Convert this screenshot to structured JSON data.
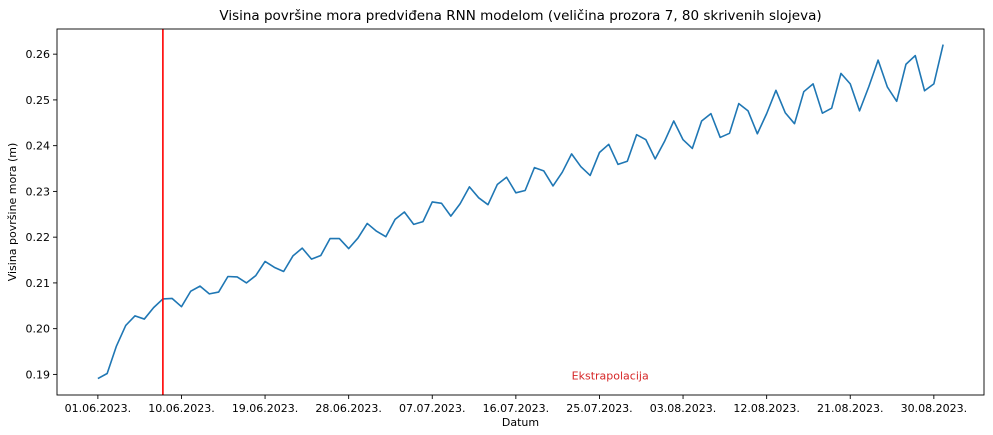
{
  "chart_data": {
    "type": "line",
    "title": "Visina površine mora predviđena RNN modelom (veličina prozora 7, 80 skrivenih slojeva)",
    "xlabel": "Datum",
    "ylabel": "Visina površine mora (m)",
    "ylim": [
      0.1855,
      0.2655
    ],
    "y_ticks": [
      0.19,
      0.2,
      0.21,
      0.22,
      0.23,
      0.24,
      0.25,
      0.26
    ],
    "y_tick_labels": [
      "0.19",
      "0.20",
      "0.21",
      "0.22",
      "0.23",
      "0.24",
      "0.25",
      "0.26"
    ],
    "x_tick_labels": [
      "01.06.2023.",
      "10.06.2023.",
      "19.06.2023.",
      "28.06.2023.",
      "07.07.2023.",
      "16.07.2023.",
      "25.07.2023.",
      "03.08.2023.",
      "12.08.2023.",
      "21.08.2023.",
      "30.08.2023."
    ],
    "x_tick_days": [
      0,
      9,
      18,
      27,
      36,
      45,
      54,
      63,
      72,
      81,
      90
    ],
    "x_start_date": "2023-06-01",
    "xlim_days": [
      -4.4,
      95.4
    ],
    "grid": false,
    "series": [
      {
        "color": "#1f77b4",
        "x_days": [
          0,
          1,
          2,
          3,
          4,
          5,
          6,
          7,
          8,
          9,
          10,
          11,
          12,
          13,
          14,
          15,
          16,
          17,
          18,
          19,
          20,
          21,
          22,
          23,
          24,
          25,
          26,
          27,
          28,
          29,
          30,
          31,
          32,
          33,
          34,
          35,
          36,
          37,
          38,
          39,
          40,
          41,
          42,
          43,
          44,
          45,
          46,
          47,
          48,
          49,
          50,
          51,
          52,
          53,
          54,
          55,
          56,
          57,
          58,
          59,
          60,
          61,
          62,
          63,
          64,
          65,
          66,
          67,
          68,
          69,
          70,
          71,
          72,
          73,
          74,
          75,
          76,
          77,
          78,
          79,
          80,
          81,
          82,
          83,
          84,
          85,
          86,
          87,
          88,
          89,
          90,
          91
        ],
        "values": [
          0.1891,
          0.1902,
          0.1962,
          0.2007,
          0.2028,
          0.2021,
          0.2046,
          0.2065,
          0.2066,
          0.2048,
          0.2082,
          0.2093,
          0.2076,
          0.208,
          0.2114,
          0.2113,
          0.21,
          0.2116,
          0.2147,
          0.2134,
          0.2125,
          0.2159,
          0.2176,
          0.2152,
          0.216,
          0.2197,
          0.2197,
          0.2175,
          0.2198,
          0.223,
          0.2213,
          0.2201,
          0.2239,
          0.2255,
          0.2228,
          0.2234,
          0.2277,
          0.2274,
          0.2246,
          0.2273,
          0.231,
          0.2286,
          0.2271,
          0.2315,
          0.2331,
          0.2297,
          0.2302,
          0.2352,
          0.2345,
          0.2312,
          0.2342,
          0.2382,
          0.2354,
          0.2335,
          0.2385,
          0.2403,
          0.2359,
          0.2366,
          0.2424,
          0.2413,
          0.2371,
          0.2409,
          0.2454,
          0.2413,
          0.2394,
          0.2454,
          0.247,
          0.2418,
          0.2427,
          0.2492,
          0.2476,
          0.2426,
          0.247,
          0.2521,
          0.2472,
          0.2448,
          0.2518,
          0.2535,
          0.2471,
          0.2482,
          0.2558,
          0.2535,
          0.2476,
          0.2529,
          0.2587,
          0.2528,
          0.2497,
          0.2578,
          0.2597,
          0.252,
          0.2535,
          0.2621
        ]
      }
    ],
    "annotations": [
      {
        "type": "vline",
        "x_day": 7,
        "color": "#ff0000"
      },
      {
        "type": "text",
        "text": "Ekstrapolacija",
        "x_day": 53,
        "y": 0.1889,
        "color": "#d62728"
      }
    ]
  }
}
